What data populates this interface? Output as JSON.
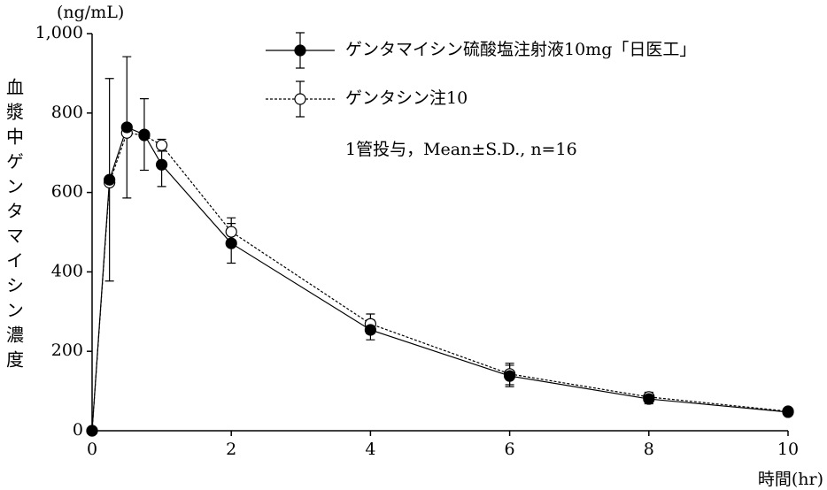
{
  "chart_data": {
    "type": "line",
    "y_unit": "(ng/mL)",
    "ylabel": "血漿中ゲンタマイシン濃度",
    "xlabel": "時間(hr)",
    "annotation": "1管投与，Mean±S.D., n=16",
    "x": [
      0,
      0.25,
      0.5,
      0.75,
      1,
      2,
      4,
      6,
      8,
      10
    ],
    "series": [
      {
        "name": "ゲンタマイシン硫酸塩注射液10mg「日医工」",
        "color": "#000",
        "marker": "filled",
        "dash": false,
        "values": [
          0,
          632,
          764,
          746,
          670,
          472,
          254,
          138,
          80,
          47
        ],
        "errors": [
          0,
          255,
          178,
          90,
          55,
          50,
          25,
          27,
          12,
          6
        ]
      },
      {
        "name": "ゲンタシン注10",
        "color": "#000",
        "marker": "open",
        "dash": true,
        "values": [
          0,
          625,
          750,
          744,
          719,
          501,
          269,
          143,
          85,
          49
        ],
        "errors": [
          0,
          0,
          0,
          0,
          15,
          35,
          25,
          27,
          12,
          6
        ]
      }
    ],
    "xlim": [
      0,
      10
    ],
    "xticks": [
      0,
      2,
      4,
      6,
      8,
      10
    ],
    "ylim": [
      0,
      1000
    ],
    "yticks": [
      0,
      200,
      400,
      600,
      800,
      {
        "value": 1000,
        "label": "1,000"
      }
    ]
  }
}
